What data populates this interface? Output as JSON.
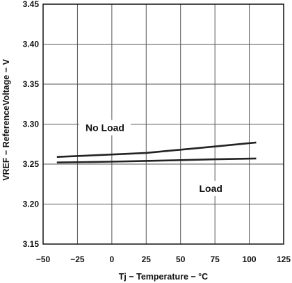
{
  "chart_data": {
    "type": "line",
    "title": "",
    "xlabel": "Tj − Temperature − °C",
    "ylabel": "VREF − ReferenceVoltage − V",
    "xlim": [
      -50,
      125
    ],
    "ylim": [
      3.15,
      3.45
    ],
    "x_ticks": [
      -50,
      -25,
      0,
      25,
      50,
      75,
      100,
      125
    ],
    "x_tick_labels": [
      "−50",
      "−25",
      "0",
      "25",
      "50",
      "75",
      "100",
      "125"
    ],
    "y_ticks": [
      3.15,
      3.2,
      3.25,
      3.3,
      3.35,
      3.4,
      3.45
    ],
    "y_tick_labels": [
      "3.15",
      "3.20",
      "3.25",
      "3.30",
      "3.35",
      "3.40",
      "3.45"
    ],
    "grid": true,
    "series": [
      {
        "name": "No Load",
        "x": [
          -40,
          0,
          25,
          50,
          75,
          105
        ],
        "y": [
          3.259,
          3.262,
          3.264,
          3.268,
          3.272,
          3.277
        ]
      },
      {
        "name": "Load",
        "x": [
          -40,
          0,
          25,
          50,
          75,
          105
        ],
        "y": [
          3.252,
          3.253,
          3.254,
          3.255,
          3.256,
          3.257
        ]
      }
    ],
    "annotations": [
      {
        "text": "No Load",
        "x": -5,
        "y": 3.293
      },
      {
        "text": "Load",
        "x": 72,
        "y": 3.217
      }
    ],
    "line_color": "#222222",
    "grid_color": "#555555"
  }
}
